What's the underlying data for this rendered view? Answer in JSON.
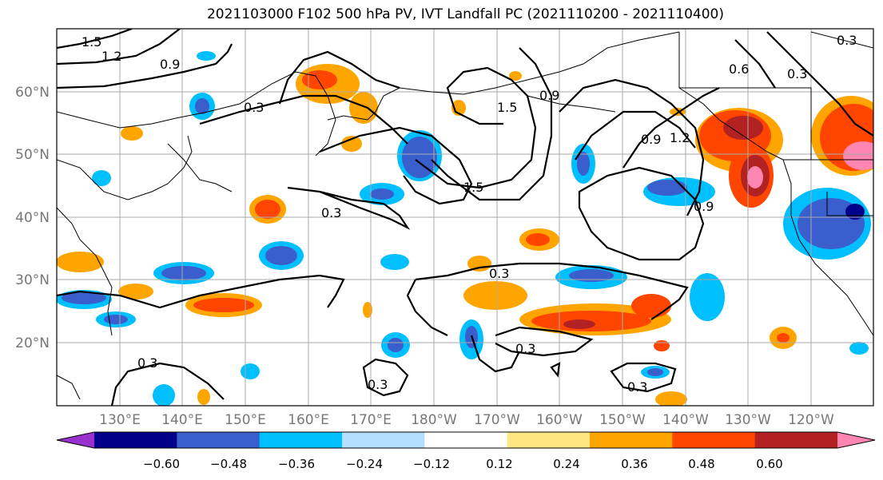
{
  "title": "2021103000 F102 500 hPa PV, IVT Landfall PC (2021110200 - 2021110400)",
  "axes": {
    "lat_labels": [
      "60°N",
      "50°N",
      "40°N",
      "30°N",
      "20°N"
    ],
    "lon_labels": [
      "130°E",
      "140°E",
      "150°E",
      "160°E",
      "170°E",
      "180°W",
      "170°W",
      "160°W",
      "150°W",
      "140°W",
      "130°W",
      "120°W"
    ]
  },
  "colorbar": {
    "tick_labels": [
      "−0.60",
      "−0.48",
      "−0.36",
      "−0.24",
      "−0.12",
      "0.12",
      "0.24",
      "0.36",
      "0.48",
      "0.60"
    ],
    "colors": [
      "#9932cc",
      "#00008b",
      "#3a5fcd",
      "#00bfff",
      "#b2dfff",
      "#ffffff",
      "#ffe680",
      "#ffa500",
      "#ff4500",
      "#b22222",
      "#ff85b3"
    ]
  },
  "contours": {
    "levels_labeled": [
      "1.5",
      "1.2",
      "0.9",
      "0.3",
      "0.3",
      "1.5",
      "1.5",
      "0.9",
      "1.2",
      "0.9",
      "0.9",
      "0.6",
      "0.3",
      "0.3",
      "0.3",
      "0.3",
      "0.3",
      "0.3",
      "0.3"
    ]
  }
}
